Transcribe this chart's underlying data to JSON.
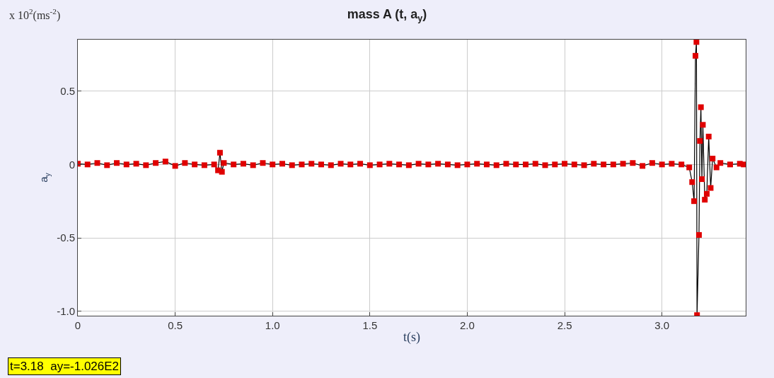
{
  "chart_data": {
    "type": "line",
    "title": "mass A (t, a$_{y}$)",
    "xlabel": "t(s)",
    "ylabel": "a$_{y}$",
    "annotations": [
      "x 10$^{2}$(ms$^{-2}$)",
      "t=3.18  ay=-1.026E2"
    ],
    "series": [
      {
        "color": "#e00000",
        "x": [
          0,
          0.05,
          0.1,
          0.15,
          0.2,
          0.25,
          0.3,
          0.35,
          0.4,
          0.45,
          0.5,
          0.55,
          0.6,
          0.65,
          0.7,
          0.72,
          0.73,
          0.74,
          0.75,
          0.8,
          0.85,
          0.9,
          0.95,
          1.0,
          1.05,
          1.1,
          1.15,
          1.2,
          1.25,
          1.3,
          1.35,
          1.4,
          1.45,
          1.5,
          1.55,
          1.6,
          1.65,
          1.7,
          1.75,
          1.8,
          1.85,
          1.9,
          1.95,
          2.0,
          2.05,
          2.1,
          2.15,
          2.2,
          2.25,
          2.3,
          2.35,
          2.4,
          2.45,
          2.5,
          2.55,
          2.6,
          2.65,
          2.7,
          2.75,
          2.8,
          2.85,
          2.9,
          2.95,
          3.0,
          3.05,
          3.1,
          3.14,
          3.155,
          3.165,
          3.172,
          3.177,
          3.18,
          3.19,
          3.195,
          3.2,
          3.205,
          3.21,
          3.22,
          3.23,
          3.24,
          3.25,
          3.26,
          3.28,
          3.3,
          3.35,
          3.4,
          3.42
        ],
        "values": [
          0.005,
          0.0,
          0.01,
          -0.005,
          0.01,
          0.0,
          0.005,
          -0.005,
          0.01,
          0.02,
          -0.01,
          0.01,
          0.0,
          -0.005,
          0.0,
          -0.04,
          0.08,
          -0.05,
          0.01,
          0.0,
          0.005,
          -0.005,
          0.01,
          0.0,
          0.005,
          -0.005,
          0.0,
          0.005,
          0.0,
          -0.005,
          0.005,
          0.0,
          0.005,
          -0.005,
          0.0,
          0.005,
          0.0,
          -0.005,
          0.005,
          0.0,
          0.005,
          0.0,
          -0.005,
          0.0,
          0.005,
          0.0,
          -0.005,
          0.005,
          0.0,
          0.0,
          0.005,
          -0.005,
          0.0,
          0.005,
          0.0,
          -0.005,
          0.005,
          0.0,
          0.0,
          0.005,
          0.01,
          -0.01,
          0.01,
          0.0,
          0.005,
          0.0,
          -0.02,
          -0.12,
          -0.25,
          0.74,
          0.834,
          -1.026,
          -0.48,
          0.16,
          0.39,
          -0.1,
          0.27,
          -0.24,
          -0.2,
          0.19,
          -0.16,
          0.04,
          -0.02,
          0.01,
          0.0,
          0.005,
          0.0
        ]
      }
    ],
    "xlim": [
      0,
      3.43
    ],
    "ylim": [
      -1.03,
      0.85
    ],
    "xticks": [
      0,
      0.5,
      {
        "value": 1.0,
        "label": "1.0"
      },
      1.5,
      {
        "value": 2.0,
        "label": "2.0"
      },
      2.5,
      {
        "value": 3.0,
        "label": "3.0"
      }
    ],
    "yticks": [
      {
        "value": -1.0,
        "label": "-1.0"
      },
      -0.5,
      0,
      0.5
    ],
    "grid": true,
    "marker": "square",
    "line_style": "solid"
  }
}
